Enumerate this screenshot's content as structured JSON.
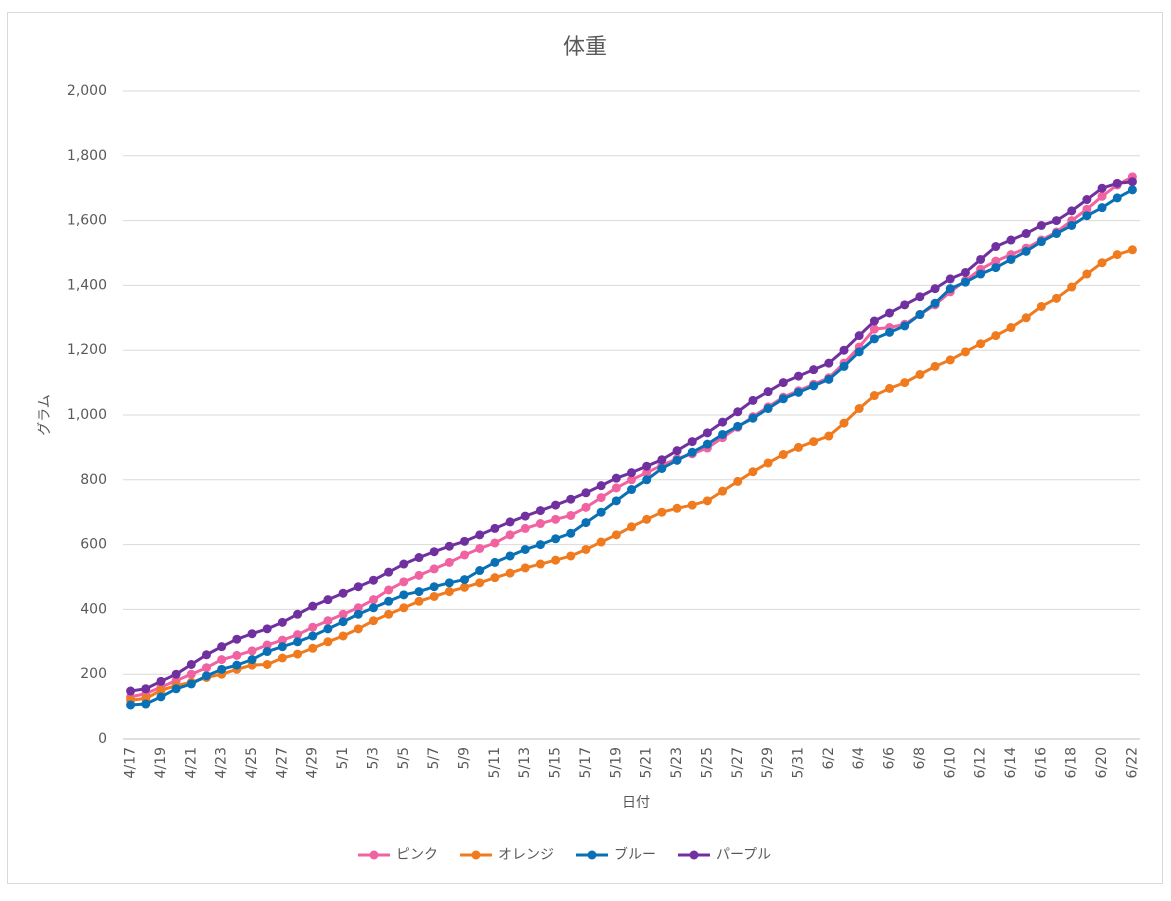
{
  "chart_data": {
    "type": "line",
    "title": "体重",
    "x_label": "日付",
    "y_label": "グラム",
    "categories": [
      "4/17",
      null,
      "4/19",
      null,
      "4/21",
      null,
      "4/23",
      null,
      "4/25",
      null,
      "4/27",
      null,
      "4/29",
      null,
      "5/1",
      null,
      "5/3",
      null,
      "5/5",
      null,
      "5/7",
      null,
      "5/9",
      null,
      "5/11",
      null,
      "5/13",
      null,
      "5/15",
      null,
      "5/17",
      null,
      "5/19",
      null,
      "5/21",
      null,
      "5/23",
      null,
      "5/25",
      null,
      "5/27",
      null,
      "5/29",
      null,
      "5/31",
      null,
      "6/2",
      null,
      "6/4",
      null,
      "6/6",
      null,
      "6/8",
      null,
      "6/10",
      null,
      "6/12",
      null,
      "6/14",
      null,
      "6/16",
      null,
      "6/18",
      null,
      "6/20",
      null,
      "6/22"
    ],
    "series": [
      {
        "name": "ピンク",
        "color": "#f062a0",
        "values": [
          130,
          140,
          160,
          180,
          200,
          220,
          245,
          258,
          272,
          290,
          305,
          322,
          345,
          365,
          385,
          405,
          430,
          460,
          485,
          505,
          525,
          545,
          568,
          588,
          605,
          630,
          650,
          665,
          678,
          690,
          715,
          745,
          775,
          800,
          822,
          845,
          865,
          880,
          898,
          930,
          962,
          995,
          1025,
          1055,
          1075,
          1095,
          1115,
          1160,
          1210,
          1265,
          1270,
          1280,
          1310,
          1340,
          1380,
          1415,
          1450,
          1475,
          1495,
          1515,
          1540,
          1565,
          1600,
          1635,
          1675,
          1710,
          1735
        ]
      },
      {
        "name": "オレンジ",
        "color": "#f07b1e",
        "values": [
          120,
          125,
          150,
          165,
          175,
          190,
          200,
          215,
          228,
          230,
          250,
          262,
          280,
          300,
          318,
          340,
          365,
          385,
          405,
          425,
          440,
          455,
          468,
          482,
          498,
          512,
          528,
          540,
          552,
          565,
          585,
          608,
          630,
          655,
          678,
          700,
          712,
          722,
          735,
          765,
          795,
          825,
          852,
          878,
          900,
          918,
          935,
          975,
          1020,
          1060,
          1082,
          1100,
          1125,
          1150,
          1170,
          1195,
          1220,
          1245,
          1270,
          1300,
          1335,
          1360,
          1395,
          1435,
          1470,
          1495,
          1510
        ]
      },
      {
        "name": "ブルー",
        "color": "#0a70b5",
        "values": [
          105,
          108,
          130,
          155,
          170,
          195,
          215,
          228,
          245,
          270,
          285,
          300,
          318,
          340,
          362,
          385,
          405,
          425,
          445,
          455,
          470,
          482,
          492,
          520,
          545,
          565,
          585,
          600,
          618,
          635,
          668,
          700,
          735,
          770,
          800,
          835,
          860,
          885,
          910,
          940,
          965,
          990,
          1020,
          1050,
          1070,
          1090,
          1110,
          1150,
          1195,
          1235,
          1255,
          1275,
          1310,
          1345,
          1390,
          1410,
          1435,
          1455,
          1480,
          1505,
          1535,
          1560,
          1585,
          1615,
          1640,
          1670,
          1695
        ]
      },
      {
        "name": "パープル",
        "color": "#7030a0",
        "values": [
          148,
          155,
          178,
          200,
          230,
          260,
          285,
          308,
          325,
          340,
          360,
          385,
          410,
          430,
          450,
          470,
          490,
          515,
          540,
          560,
          578,
          595,
          610,
          630,
          650,
          670,
          688,
          705,
          722,
          740,
          760,
          782,
          805,
          822,
          842,
          862,
          890,
          918,
          945,
          978,
          1010,
          1045,
          1072,
          1100,
          1120,
          1140,
          1160,
          1200,
          1245,
          1290,
          1315,
          1340,
          1365,
          1390,
          1420,
          1440,
          1480,
          1520,
          1540,
          1560,
          1585,
          1600,
          1630,
          1665,
          1700,
          1715,
          1720
        ]
      }
    ],
    "ylim": [
      0,
      2000
    ],
    "yticks": [
      0,
      200,
      400,
      600,
      800,
      {
        "value": 1000,
        "label": "1,000"
      },
      {
        "value": 1200,
        "label": "1,200"
      },
      {
        "value": 1400,
        "label": "1,400"
      },
      {
        "value": 1600,
        "label": "1,600"
      },
      {
        "value": 1800,
        "label": "1,800"
      },
      {
        "value": 2000,
        "label": "2,000"
      }
    ],
    "grid": true,
    "legend": "bottom"
  }
}
